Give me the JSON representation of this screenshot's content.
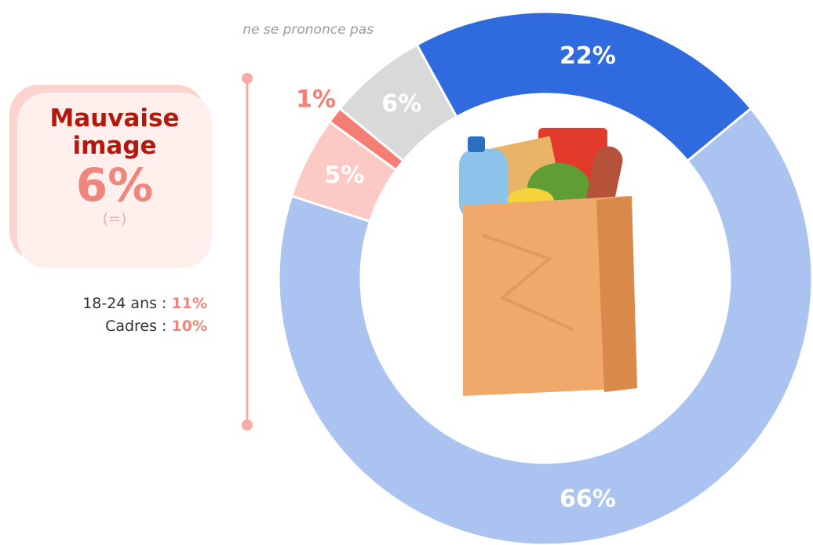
{
  "chart_data": {
    "type": "donut",
    "categories": [
      null,
      null,
      null,
      null,
      "ne se prononce pas"
    ],
    "values": [
      22,
      66,
      5,
      1,
      6
    ],
    "value_labels": [
      "22%",
      "66%",
      "5%",
      "1%",
      "6%"
    ],
    "colors": [
      "#2f6bde",
      "#abc3f0",
      "#fcc9c4",
      "#f47e74",
      "#d9d9d9"
    ]
  },
  "callout": {
    "title": "Mauvaise image",
    "value": "6%",
    "change": "(=)",
    "details": [
      {
        "label": "18-24 ans :",
        "value": "11%"
      },
      {
        "label": "Cadres :",
        "value": "10%"
      }
    ]
  }
}
